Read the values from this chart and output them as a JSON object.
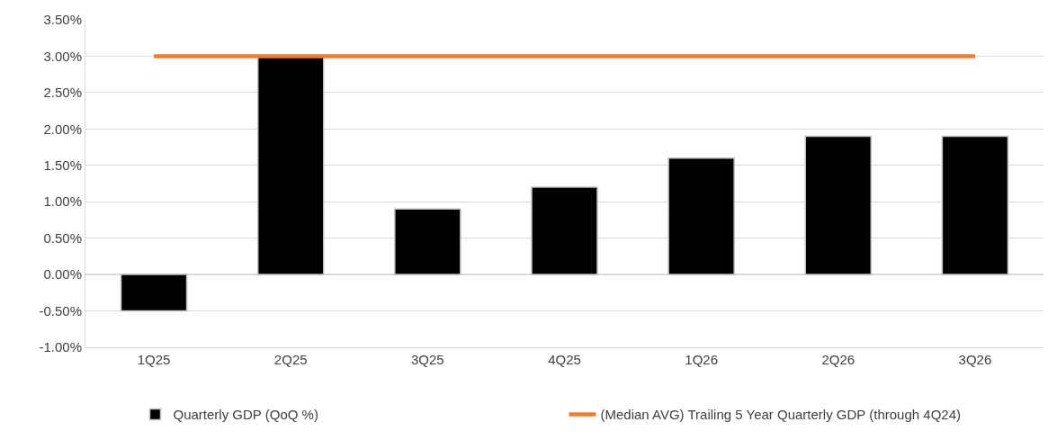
{
  "chart_data": {
    "type": "bar",
    "categories": [
      "1Q25",
      "2Q25",
      "3Q25",
      "4Q25",
      "1Q26",
      "2Q26",
      "3Q26"
    ],
    "series": [
      {
        "name": "Quarterly GDP (QoQ %)",
        "color": "#000000",
        "values": [
          -0.5,
          3.0,
          0.9,
          1.2,
          1.6,
          1.9,
          1.9
        ]
      },
      {
        "name": "(Median AVG) Trailing 5 Year Quarterly GDP (through 4Q24)",
        "type": "line",
        "color": "#ed7d31",
        "values": [
          3.0,
          3.0,
          3.0,
          3.0,
          3.0,
          3.0,
          3.0
        ]
      }
    ],
    "ylim": [
      -1.0,
      3.5
    ],
    "yticks": [
      {
        "value": -1.0,
        "label": "-1.00%"
      },
      {
        "value": -0.5,
        "label": "-0.50%"
      },
      {
        "value": 0.0,
        "label": "0.00%"
      },
      {
        "value": 0.5,
        "label": "0.50%"
      },
      {
        "value": 1.0,
        "label": "1.00%"
      },
      {
        "value": 1.5,
        "label": "1.50%"
      },
      {
        "value": 2.0,
        "label": "2.00%"
      },
      {
        "value": 2.5,
        "label": "2.50%"
      },
      {
        "value": 3.0,
        "label": "3.00%"
      },
      {
        "value": 3.5,
        "label": "3.50%"
      }
    ],
    "grid": "y",
    "legend": "bottom"
  }
}
